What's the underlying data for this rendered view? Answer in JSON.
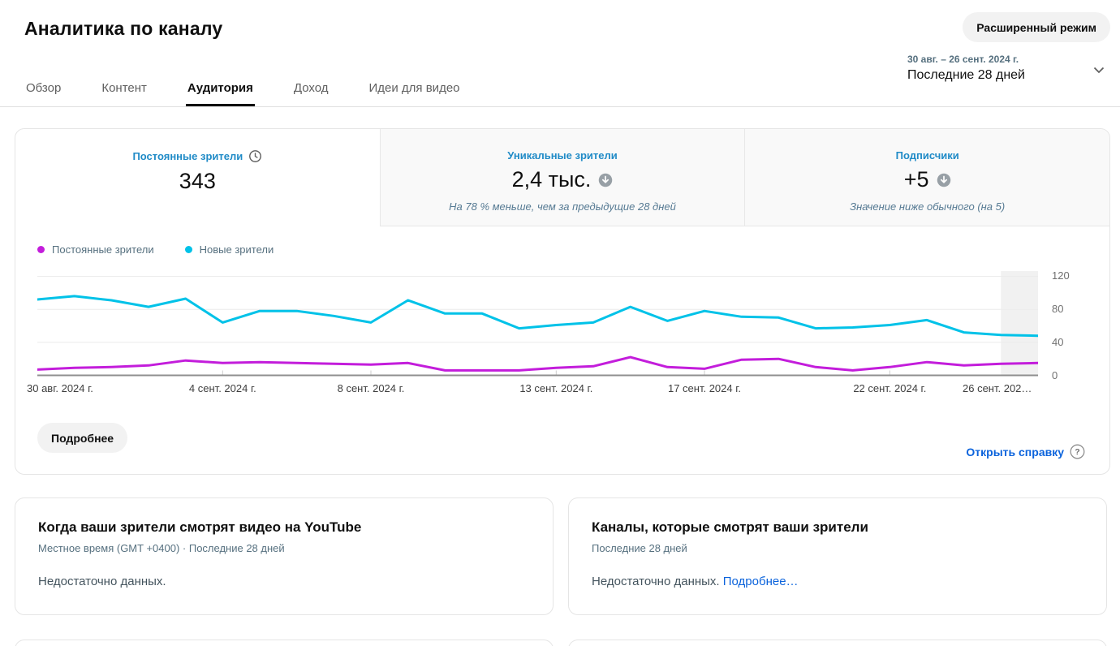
{
  "header": {
    "title": "Аналитика по каналу",
    "advanced_mode_label": "Расширенный режим",
    "tabs": [
      {
        "label": "Обзор",
        "active": false
      },
      {
        "label": "Контент",
        "active": false
      },
      {
        "label": "Аудитория",
        "active": true
      },
      {
        "label": "Доход",
        "active": false
      },
      {
        "label": "Идеи для видео",
        "active": false
      }
    ],
    "date_range": {
      "range": "30 авг. – 26 сент. 2024 г.",
      "preset": "Последние 28 дней"
    }
  },
  "metric_tabs": [
    {
      "label": "Постоянные зрители",
      "value": "343",
      "note": "",
      "active": true,
      "label_icon": "clock-icon"
    },
    {
      "label": "Уникальные зрители",
      "value": "2,4 тыс.",
      "note": "На 78 % меньше, чем за предыдущие 28 дней",
      "active": false,
      "value_icon": "arrow-down-circle-icon"
    },
    {
      "label": "Подписчики",
      "value": "+5",
      "note": "Значение ниже обычного (на 5)",
      "active": false,
      "value_icon": "arrow-down-circle-icon"
    }
  ],
  "legend": [
    {
      "label": "Постоянные зрители",
      "color": "#c31ddb"
    },
    {
      "label": "Новые зрители",
      "color": "#00c2e8"
    }
  ],
  "chart_data": {
    "type": "line",
    "x_labels": [
      "30 авг. 2024 г.",
      "4 сент. 2024 г.",
      "8 сент. 2024 г.",
      "13 сент. 2024 г.",
      "17 сент. 2024 г.",
      "22 сент. 2024 г.",
      "26 сент. 202…"
    ],
    "x_label_days": [
      0,
      5,
      9,
      14,
      18,
      23,
      27
    ],
    "days": 28,
    "series": [
      {
        "name": "Постоянные зрители",
        "color": "#c31ddb",
        "values": [
          7,
          9,
          10,
          12,
          18,
          15,
          16,
          15,
          14,
          13,
          15,
          6,
          6,
          6,
          9,
          11,
          22,
          10,
          8,
          19,
          20,
          10,
          6,
          10,
          16,
          12,
          14,
          15
        ]
      },
      {
        "name": "Новые зрители",
        "color": "#00c2e8",
        "values": [
          92,
          96,
          91,
          83,
          93,
          64,
          78,
          78,
          72,
          64,
          91,
          75,
          75,
          57,
          61,
          64,
          83,
          66,
          78,
          71,
          70,
          57,
          58,
          61,
          67,
          52,
          49,
          48
        ]
      }
    ],
    "y_ticks": [
      0,
      40,
      80,
      120
    ],
    "ylim": [
      0,
      126
    ],
    "grid": true,
    "legend_position": "top-left",
    "highlight_last_day": true
  },
  "card_footer": {
    "details_label": "Подробнее",
    "help_label": "Открыть справку"
  },
  "cards": [
    {
      "title": "Когда ваши зрители смотрят видео на YouTube",
      "subtitle": "Местное время (GMT +0400) · Последние 28 дней",
      "body": "Недостаточно данных.",
      "link": ""
    },
    {
      "title": "Каналы, которые смотрят ваши зрители",
      "subtitle": "Последние 28 дней",
      "body": "Недостаточно данных. ",
      "link": "Подробнее…"
    }
  ],
  "colors": {
    "accent_link": "#0b63dc",
    "metric_label_blue": "#208bc7",
    "steel_text": "#56707f",
    "note_text": "#567a93",
    "body_text": "#44545e",
    "line_returning": "#c31ddb",
    "line_new": "#00c2e8",
    "highlight_band": "#f1f1f1",
    "axis_line": "#8f8f8f"
  }
}
